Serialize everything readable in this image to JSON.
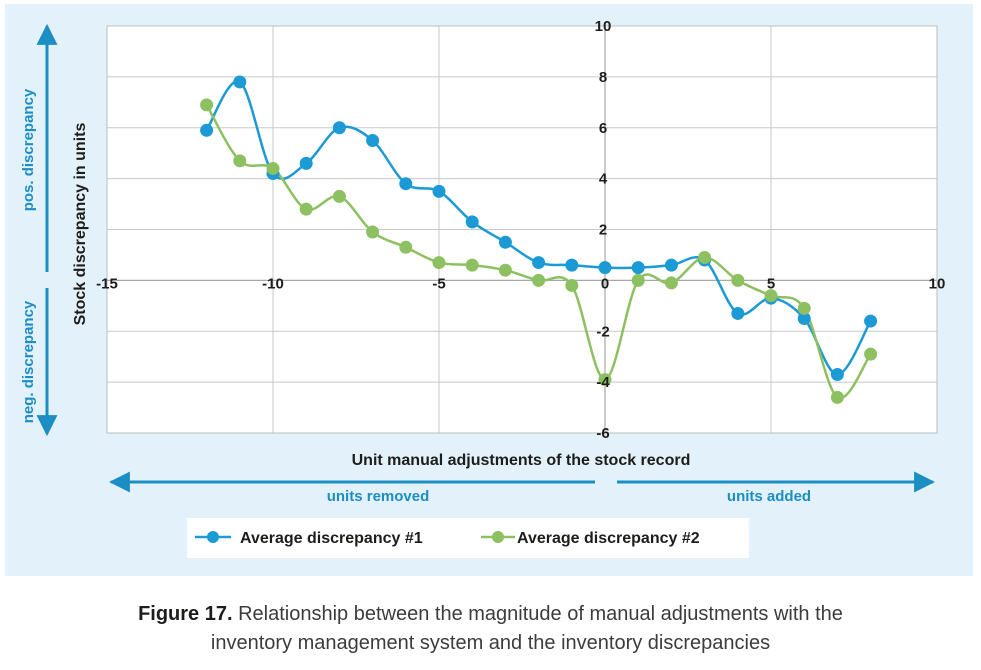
{
  "figure": {
    "caption_label": "Figure 17.",
    "caption_text_line1": " Relationship between the magnitude of manual adjustments with the",
    "caption_text_line2": "inventory management system and the inventory discrepancies"
  },
  "annotations": {
    "pos_discrepancy": "pos. discrepancy",
    "neg_discrepancy": "neg. discrepancy",
    "units_removed": "units removed",
    "units_added": "units added"
  },
  "colors": {
    "series1": "#1b9ad6",
    "series2": "#8dc060",
    "panel_background": "#e3f1fa",
    "plot_background": "#ffffff",
    "annotation": "#1b8ec4",
    "grid": "#c8c8c8"
  },
  "chart_data": {
    "type": "line",
    "title": "",
    "xlabel": "Unit manual adjustments of the stock record",
    "ylabel": "Stock discrepancy in units",
    "xlim": [
      -15,
      10
    ],
    "ylim": [
      -6,
      10
    ],
    "x_ticks": [
      -15,
      -10,
      -5,
      0,
      5,
      10
    ],
    "x_tick_labels": [
      "-15",
      "-10",
      "-5",
      "0",
      "5",
      "10"
    ],
    "y_ticks": [
      -6,
      -4,
      -2,
      0,
      2,
      4,
      6,
      8,
      10
    ],
    "y_tick_labels": [
      "-6",
      "-4",
      "-2",
      "",
      "2",
      "4",
      "6",
      "8",
      "10"
    ],
    "grid": true,
    "smooth": true,
    "legend_position": "bottom",
    "series": [
      {
        "name": "Average discrepancy #1",
        "color": "#1b9ad6",
        "x": [
          -12,
          -11,
          -10,
          -9,
          -8,
          -7,
          -6,
          -5,
          -4,
          -3,
          -2,
          -1,
          0,
          1,
          2,
          3,
          4,
          5,
          6,
          7,
          8
        ],
        "y": [
          5.9,
          7.8,
          4.2,
          4.6,
          6.0,
          5.5,
          3.8,
          3.5,
          2.3,
          1.5,
          0.7,
          0.6,
          0.5,
          0.5,
          0.6,
          0.8,
          -1.3,
          -0.7,
          -1.5,
          -3.7,
          -1.6
        ]
      },
      {
        "name": "Average discrepancy #2",
        "color": "#8dc060",
        "x": [
          -12,
          -11,
          -10,
          -9,
          -8,
          -7,
          -6,
          -5,
          -4,
          -3,
          -2,
          -1,
          0,
          1,
          2,
          3,
          4,
          5,
          6,
          7,
          8
        ],
        "y": [
          6.9,
          4.7,
          4.4,
          2.8,
          3.3,
          1.9,
          1.3,
          0.7,
          0.6,
          0.4,
          0.0,
          -0.2,
          -3.9,
          0.0,
          -0.1,
          0.9,
          0.0,
          -0.6,
          -1.1,
          -4.6,
          -2.9
        ]
      }
    ]
  }
}
